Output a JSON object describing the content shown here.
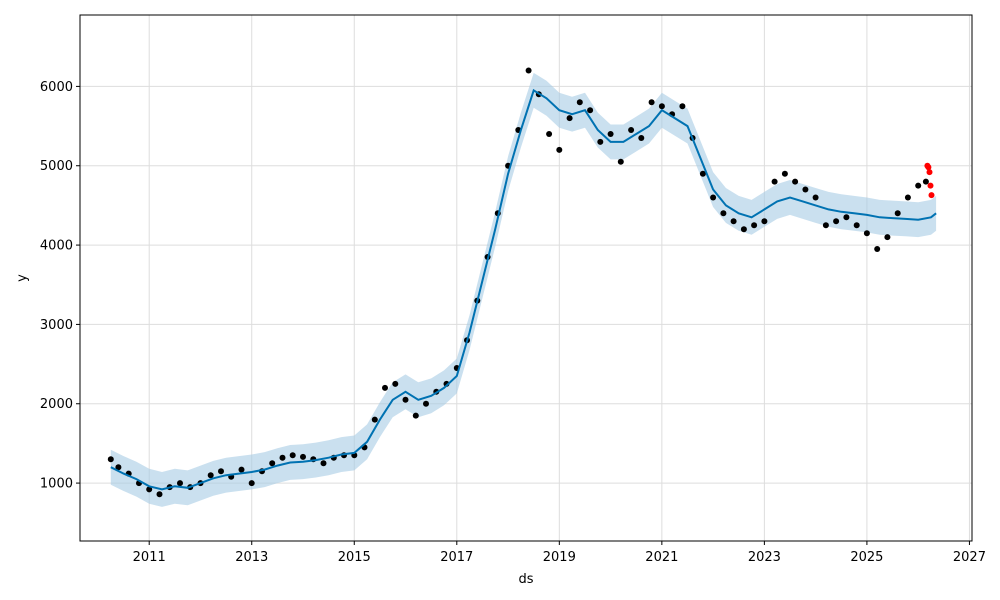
{
  "chart_data": {
    "type": "line",
    "title": "",
    "xlabel": "ds",
    "ylabel": "y",
    "xlim": [
      2009.65,
      2027.05
    ],
    "ylim": [
      270,
      6900
    ],
    "grid": true,
    "x_ticks": [
      2011,
      2013,
      2015,
      2017,
      2019,
      2021,
      2023,
      2025,
      2027
    ],
    "x_tick_labels": [
      "2011",
      "2013",
      "2015",
      "2017",
      "2019",
      "2021",
      "2023",
      "2025",
      "2027"
    ],
    "y_ticks": [
      1000,
      2000,
      3000,
      4000,
      5000,
      6000
    ],
    "y_tick_labels": [
      "1000",
      "2000",
      "3000",
      "4000",
      "5000",
      "6000"
    ],
    "colors": {
      "actual": "#000000",
      "forecast": "#0072B2",
      "interval": "#a6cce4",
      "recent": "#ff0000"
    },
    "series": [
      {
        "role": "actual",
        "style": "scatter",
        "x": [
          2010.25,
          2010.4,
          2010.6,
          2010.8,
          2011.0,
          2011.2,
          2011.4,
          2011.6,
          2011.8,
          2012.0,
          2012.2,
          2012.4,
          2012.6,
          2012.8,
          2013.0,
          2013.2,
          2013.4,
          2013.6,
          2013.8,
          2014.0,
          2014.2,
          2014.4,
          2014.6,
          2014.8,
          2015.0,
          2015.2,
          2015.4,
          2015.6,
          2015.8,
          2016.0,
          2016.2,
          2016.4,
          2016.6,
          2016.8,
          2017.0,
          2017.2,
          2017.4,
          2017.6,
          2017.8,
          2018.0,
          2018.2,
          2018.4,
          2018.6,
          2018.8,
          2019.0,
          2019.2,
          2019.4,
          2019.6,
          2019.8,
          2020.0,
          2020.2,
          2020.4,
          2020.6,
          2020.8,
          2021.0,
          2021.2,
          2021.4,
          2021.6,
          2021.8,
          2022.0,
          2022.2,
          2022.4,
          2022.6,
          2022.8,
          2023.0,
          2023.2,
          2023.4,
          2023.6,
          2023.8,
          2024.0,
          2024.2,
          2024.4,
          2024.6,
          2024.8,
          2025.0,
          2025.2,
          2025.4,
          2025.6,
          2025.8,
          2026.0,
          2026.15
        ],
        "y": [
          1300,
          1200,
          1120,
          1000,
          920,
          860,
          950,
          1000,
          950,
          1000,
          1100,
          1150,
          1080,
          1170,
          1000,
          1150,
          1250,
          1320,
          1350,
          1330,
          1300,
          1250,
          1320,
          1350,
          1350,
          1450,
          1800,
          2200,
          2250,
          2050,
          1850,
          2000,
          2150,
          2250,
          2450,
          2800,
          3300,
          3850,
          4400,
          5000,
          5450,
          6200,
          5900,
          5400,
          5200,
          5600,
          5800,
          5700,
          5300,
          5400,
          5050,
          5450,
          5350,
          5800,
          5750,
          5650,
          5750,
          5350,
          4900,
          4600,
          4400,
          4300,
          4200,
          4250,
          4300,
          4800,
          4900,
          4800,
          4700,
          4600,
          4250,
          4300,
          4350,
          4250,
          4150,
          3950,
          4100,
          4400,
          4600,
          4750,
          4800
        ]
      },
      {
        "role": "recent",
        "style": "scatter",
        "x": [
          2026.18,
          2026.2,
          2026.22,
          2026.24,
          2026.26
        ],
        "y": [
          5000,
          4980,
          4920,
          4750,
          4630
        ]
      },
      {
        "role": "forecast",
        "style": "line",
        "x": [
          2010.25,
          2010.5,
          2010.75,
          2011.0,
          2011.25,
          2011.5,
          2011.75,
          2012.0,
          2012.25,
          2012.5,
          2012.75,
          2013.0,
          2013.25,
          2013.5,
          2013.75,
          2014.0,
          2014.25,
          2014.5,
          2014.75,
          2015.0,
          2015.25,
          2015.5,
          2015.75,
          2016.0,
          2016.25,
          2016.5,
          2016.75,
          2017.0,
          2017.25,
          2017.5,
          2017.75,
          2018.0,
          2018.25,
          2018.5,
          2018.75,
          2019.0,
          2019.25,
          2019.5,
          2019.75,
          2020.0,
          2020.25,
          2020.5,
          2020.75,
          2021.0,
          2021.25,
          2021.5,
          2021.75,
          2022.0,
          2022.25,
          2022.5,
          2022.75,
          2023.0,
          2023.25,
          2023.5,
          2023.75,
          2024.0,
          2024.25,
          2024.5,
          2024.75,
          2025.0,
          2025.25,
          2025.5,
          2025.75,
          2026.0,
          2026.25,
          2026.35
        ],
        "y": [
          1200,
          1120,
          1050,
          960,
          920,
          960,
          940,
          1000,
          1060,
          1100,
          1120,
          1140,
          1170,
          1220,
          1260,
          1270,
          1290,
          1320,
          1360,
          1380,
          1520,
          1800,
          2050,
          2150,
          2050,
          2100,
          2200,
          2350,
          2900,
          3550,
          4200,
          4900,
          5450,
          5950,
          5850,
          5700,
          5650,
          5700,
          5450,
          5300,
          5300,
          5400,
          5500,
          5700,
          5600,
          5500,
          5100,
          4700,
          4500,
          4400,
          4350,
          4450,
          4550,
          4600,
          4550,
          4500,
          4450,
          4420,
          4400,
          4380,
          4350,
          4340,
          4330,
          4320,
          4350,
          4400
        ]
      }
    ],
    "interval_half_width": 220
  }
}
